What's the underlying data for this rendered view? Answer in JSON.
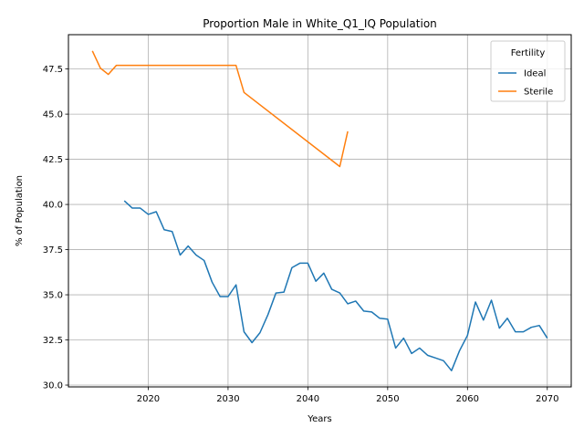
{
  "chart_data": {
    "type": "line",
    "title": "Proportion Male in White_Q1_IQ Population",
    "xlabel": "Years",
    "ylabel": "% of Population",
    "xlim": [
      2010,
      2073
    ],
    "ylim": [
      29.9,
      49.4
    ],
    "xticks": [
      2020,
      2030,
      2040,
      2050,
      2060,
      2070
    ],
    "yticks": [
      30.0,
      32.5,
      35.0,
      37.5,
      40.0,
      42.5,
      45.0,
      47.5
    ],
    "ytick_labels": [
      "30.0",
      "32.5",
      "35.0",
      "37.5",
      "40.0",
      "42.5",
      "45.0",
      "47.5"
    ],
    "grid": true,
    "legend": {
      "title": "Fertility",
      "placement": "top-right"
    },
    "series": [
      {
        "name": "Ideal",
        "color": "#1f77b4",
        "x": [
          2017,
          2018,
          2019,
          2020,
          2021,
          2022,
          2023,
          2024,
          2025,
          2026,
          2027,
          2028,
          2029,
          2030,
          2031,
          2032,
          2033,
          2034,
          2035,
          2036,
          2037,
          2038,
          2039,
          2040,
          2041,
          2042,
          2043,
          2044,
          2045,
          2046,
          2047,
          2048,
          2049,
          2050,
          2051,
          2052,
          2053,
          2054,
          2055,
          2056,
          2057,
          2058,
          2059,
          2060,
          2061,
          2062,
          2063,
          2064,
          2065,
          2066,
          2067,
          2068,
          2069,
          2070
        ],
        "y": [
          40.2,
          39.8,
          39.8,
          39.45,
          39.6,
          38.6,
          38.5,
          37.2,
          37.7,
          37.2,
          36.9,
          35.7,
          34.9,
          34.9,
          35.55,
          32.95,
          32.35,
          32.9,
          33.9,
          35.1,
          35.15,
          36.5,
          36.75,
          36.75,
          35.75,
          36.2,
          35.3,
          35.1,
          34.5,
          34.65,
          34.1,
          34.05,
          33.7,
          33.65,
          32.05,
          32.6,
          31.75,
          32.05,
          31.65,
          31.5,
          31.35,
          30.8,
          31.9,
          32.75,
          34.6,
          33.6,
          34.7,
          33.15,
          33.7,
          32.95,
          32.95,
          33.2,
          33.3,
          32.6
        ]
      },
      {
        "name": "Sterile",
        "color": "#ff7f0e",
        "x": [
          2013,
          2014,
          2015,
          2016,
          2017,
          2018,
          2019,
          2020,
          2021,
          2022,
          2023,
          2024,
          2025,
          2026,
          2027,
          2028,
          2029,
          2030,
          2031,
          2032,
          2044,
          2045
        ],
        "y": [
          48.5,
          47.55,
          47.2,
          47.7,
          47.7,
          47.7,
          47.7,
          47.7,
          47.7,
          47.7,
          47.7,
          47.7,
          47.7,
          47.7,
          47.7,
          47.7,
          47.7,
          47.7,
          47.7,
          46.2,
          42.1,
          44.05
        ]
      }
    ]
  }
}
